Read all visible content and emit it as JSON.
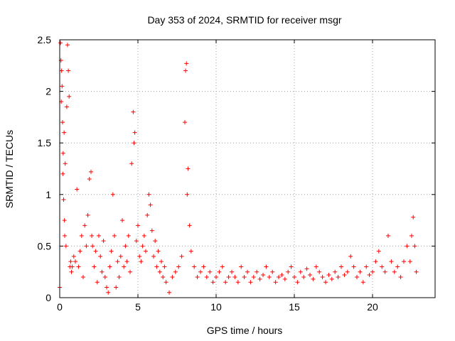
{
  "chart_data": {
    "type": "scatter",
    "title": "Day 353 of 2024, SRMTID for receiver msgr",
    "xlabel": "GPS time / hours",
    "ylabel": "SRMTID / TECUs",
    "xlim": [
      0,
      24
    ],
    "ylim": [
      0,
      2.5
    ],
    "xticks": [
      0,
      5,
      10,
      15,
      20
    ],
    "xtick_labels": [
      "0",
      "5",
      "10",
      "15",
      "20"
    ],
    "yticks": [
      0,
      0.5,
      1,
      1.5,
      2,
      2.5
    ],
    "ytick_labels": [
      "0",
      "0.5",
      "1",
      "1.5",
      "2",
      "2.5"
    ],
    "grid": true,
    "marker": "+",
    "series": [
      {
        "name": "SRMTID",
        "color": "#ff0000",
        "x": [
          0.0,
          0.05,
          0.08,
          0.1,
          0.12,
          0.15,
          0.18,
          0.2,
          0.22,
          0.25,
          0.28,
          0.3,
          0.32,
          0.35,
          0.4,
          0.45,
          0.5,
          0.55,
          0.6,
          0.65,
          0.7,
          0.75,
          0.8,
          0.9,
          1.0,
          1.1,
          1.2,
          1.3,
          1.4,
          1.5,
          1.6,
          1.7,
          1.8,
          1.9,
          2.0,
          2.05,
          2.1,
          2.2,
          2.3,
          2.4,
          2.5,
          2.6,
          2.7,
          2.8,
          2.9,
          3.0,
          3.1,
          3.2,
          3.3,
          3.4,
          3.5,
          3.6,
          3.7,
          3.8,
          3.9,
          4.0,
          4.1,
          4.2,
          4.3,
          4.4,
          4.5,
          4.6,
          4.7,
          4.75,
          4.8,
          4.9,
          5.0,
          5.1,
          5.2,
          5.3,
          5.4,
          5.5,
          5.6,
          5.7,
          5.8,
          5.9,
          6.0,
          6.1,
          6.2,
          6.3,
          6.4,
          6.5,
          6.6,
          6.7,
          6.8,
          7.0,
          7.2,
          7.4,
          7.6,
          7.8,
          8.0,
          8.05,
          8.1,
          8.15,
          8.2,
          8.3,
          8.4,
          8.6,
          8.8,
          9.0,
          9.2,
          9.4,
          9.6,
          9.8,
          10.0,
          10.2,
          10.4,
          10.6,
          10.8,
          11.0,
          11.2,
          11.4,
          11.6,
          11.8,
          12.0,
          12.2,
          12.4,
          12.6,
          12.8,
          13.0,
          13.2,
          13.4,
          13.6,
          13.8,
          14.0,
          14.2,
          14.4,
          14.6,
          14.8,
          15.0,
          15.2,
          15.4,
          15.6,
          15.8,
          16.0,
          16.2,
          16.4,
          16.6,
          16.8,
          17.0,
          17.2,
          17.4,
          17.6,
          17.8,
          18.0,
          18.2,
          18.4,
          18.6,
          18.8,
          19.0,
          19.2,
          19.4,
          19.6,
          19.8,
          20.0,
          20.2,
          20.4,
          20.6,
          20.8,
          21.0,
          21.2,
          21.4,
          21.6,
          21.8,
          22.0,
          22.2,
          22.4,
          22.5,
          22.6,
          22.7,
          22.8
        ],
        "y": [
          0.1,
          2.47,
          2.3,
          1.9,
          2.2,
          2.05,
          1.7,
          1.2,
          1.4,
          0.95,
          1.6,
          0.75,
          0.6,
          1.3,
          0.5,
          1.85,
          2.45,
          2.2,
          1.95,
          0.3,
          0.35,
          0.25,
          0.3,
          0.4,
          0.35,
          1.05,
          0.3,
          0.45,
          0.6,
          0.2,
          0.7,
          0.5,
          0.8,
          1.15,
          1.22,
          0.6,
          0.5,
          0.3,
          0.45,
          0.15,
          0.6,
          0.4,
          0.25,
          0.55,
          0.2,
          0.1,
          0.05,
          0.3,
          0.45,
          1.0,
          0.6,
          0.1,
          0.35,
          0.2,
          0.4,
          0.75,
          0.3,
          0.5,
          0.35,
          0.6,
          0.25,
          1.3,
          1.8,
          1.5,
          1.6,
          0.55,
          0.7,
          0.4,
          0.35,
          0.5,
          0.6,
          0.45,
          0.8,
          1.0,
          0.9,
          0.65,
          0.4,
          0.55,
          0.3,
          0.45,
          0.25,
          0.35,
          0.2,
          0.3,
          0.15,
          0.05,
          0.2,
          0.25,
          0.3,
          0.4,
          1.7,
          2.2,
          2.27,
          1.0,
          1.25,
          0.7,
          0.45,
          0.3,
          0.2,
          0.25,
          0.3,
          0.2,
          0.25,
          0.15,
          0.2,
          0.25,
          0.3,
          0.15,
          0.2,
          0.25,
          0.2,
          0.15,
          0.3,
          0.2,
          0.25,
          0.15,
          0.2,
          0.25,
          0.18,
          0.22,
          0.3,
          0.2,
          0.25,
          0.15,
          0.2,
          0.22,
          0.18,
          0.25,
          0.3,
          0.2,
          0.15,
          0.25,
          0.2,
          0.28,
          0.22,
          0.18,
          0.3,
          0.25,
          0.2,
          0.15,
          0.22,
          0.18,
          0.25,
          0.2,
          0.3,
          0.22,
          0.25,
          0.4,
          0.3,
          0.2,
          0.25,
          0.15,
          0.3,
          0.22,
          0.25,
          0.35,
          0.45,
          0.3,
          0.25,
          0.6,
          0.35,
          0.25,
          0.3,
          0.2,
          0.35,
          0.5,
          0.35,
          0.6,
          0.78,
          0.5,
          0.25
        ]
      }
    ]
  }
}
